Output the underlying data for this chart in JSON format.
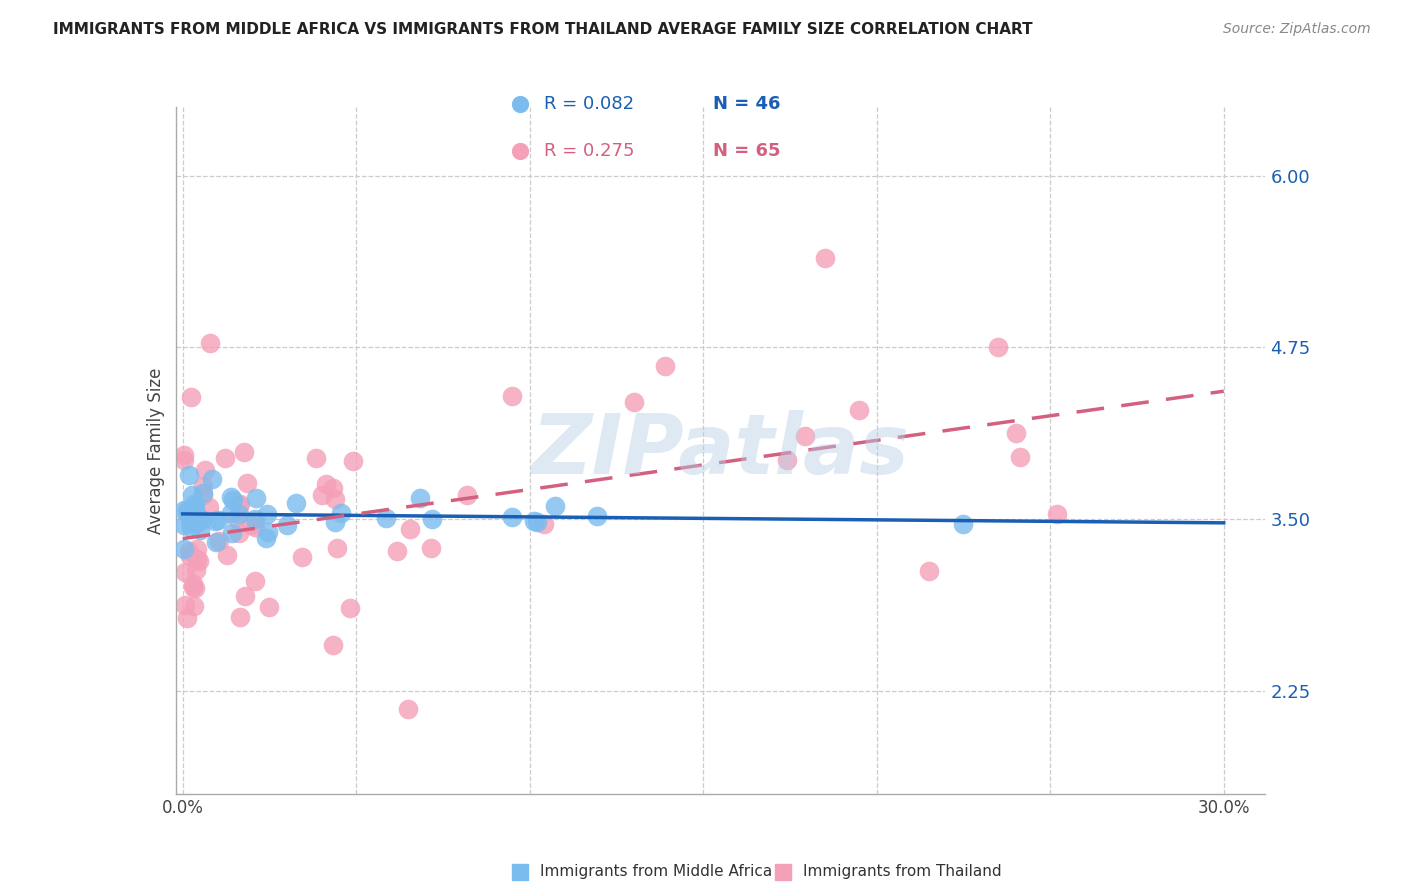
{
  "title": "IMMIGRANTS FROM MIDDLE AFRICA VS IMMIGRANTS FROM THAILAND AVERAGE FAMILY SIZE CORRELATION CHART",
  "source": "Source: ZipAtlas.com",
  "ylabel": "Average Family Size",
  "legend_label1": "Immigrants from Middle Africa",
  "legend_label2": "Immigrants from Thailand",
  "legend_R1": "R = 0.082",
  "legend_N1": "N = 46",
  "legend_R2": "R = 0.275",
  "legend_N2": "N = 65",
  "color_blue": "#7bbcee",
  "color_pink": "#f4a0b8",
  "color_blue_dark": "#1a5fb4",
  "color_pink_dark": "#d46080",
  "watermark": "ZIPatlas",
  "ylim_lo": 1.5,
  "ylim_hi": 6.5,
  "xlim_lo": -0.002,
  "xlim_hi": 0.312,
  "yticks": [
    2.25,
    3.5,
    4.75,
    6.0
  ],
  "ytick_labels": [
    "2.25",
    "3.50",
    "4.75",
    "6.00"
  ],
  "xticks": [
    0.0,
    0.05,
    0.1,
    0.15,
    0.2,
    0.25,
    0.3
  ],
  "xtick_labels": [
    "0.0%",
    "",
    "",
    "",
    "",
    "",
    "30.0%"
  ],
  "grid_color": "#cccccc",
  "spine_color": "#aaaaaa"
}
